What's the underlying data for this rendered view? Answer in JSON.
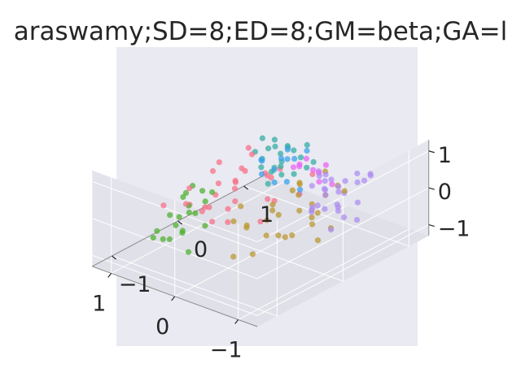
{
  "chart_data": {
    "type": "scatter",
    "projection": "3d",
    "title": "araswamy;SD=8;ED=8;GM=beta;GA=l",
    "xlabel": "",
    "ylabel": "",
    "zlabel": "",
    "xlim": [
      -1.3,
      1.3
    ],
    "ylim": [
      -1.3,
      1.3
    ],
    "zlim": [
      -1.3,
      1.3
    ],
    "x_ticks": [
      "−1",
      "0",
      "1"
    ],
    "y_ticks": [
      "−1",
      "0",
      "1"
    ],
    "z_ticks": [
      "−1",
      "0",
      "1"
    ],
    "grid": true,
    "legend": "none",
    "style": {
      "axes_bg": "#eaeaf2",
      "pane_color": "#e3e3eb",
      "grid_color": "#ffffff",
      "text_color": "#262626",
      "marker_alpha": 0.75
    },
    "series": [
      {
        "color": "#f77189",
        "x": [
          -0.1,
          0.35,
          0.4,
          -0.3,
          0.55,
          0.6,
          0.1,
          0.45,
          0.6,
          0.2,
          0.7,
          0.4,
          0.5,
          0.25,
          0.8,
          0.5,
          0.35,
          0.55,
          0.65,
          0.0,
          0.1,
          0.3,
          0.45,
          0.6,
          0.4,
          0.2,
          0.75,
          0.3,
          0.5,
          0.55
        ],
        "y": [
          0.2,
          -0.3,
          -0.5,
          0.5,
          -0.6,
          -0.2,
          0.2,
          0.2,
          -0.5,
          -0.3,
          -0.4,
          0.0,
          0.1,
          -0.6,
          -0.7,
          0.3,
          0.5,
          0.6,
          0.0,
          0.0,
          -0.4,
          -0.1,
          -0.3,
          0.2,
          0.1,
          0.3,
          0.0,
          0.5,
          -0.2,
          0.4
        ],
        "z": [
          0.8,
          0.6,
          0.0,
          0.5,
          0.2,
          -0.3,
          0.5,
          0.4,
          0.5,
          0.0,
          -0.1,
          -0.2,
          0.2,
          0.3,
          0.1,
          0.9,
          0.0,
          -0.1,
          0.7,
          -0.5,
          -0.2,
          0.3,
          -0.5,
          0.0,
          0.6,
          -0.3,
          0.4,
          -0.6,
          0.1,
          0.6
        ]
      },
      {
        "color": "#bb9832",
        "x": [
          -0.9,
          -0.7,
          -0.8,
          -0.6,
          -0.5,
          -0.4,
          -0.3,
          -0.7,
          -0.6,
          -0.2,
          -0.5,
          -0.4,
          -0.8,
          -0.3,
          -0.1,
          -0.6,
          -0.5,
          -0.2,
          0.0,
          -0.7,
          -0.4,
          -0.3,
          -0.9,
          -0.1,
          -0.6,
          -0.8,
          -0.5,
          -0.2,
          -0.4,
          -0.3
        ],
        "y": [
          0.0,
          -0.3,
          0.4,
          0.2,
          -0.6,
          -0.2,
          0.3,
          0.6,
          -0.1,
          -0.4,
          0.5,
          0.1,
          -0.5,
          -0.7,
          0.0,
          0.2,
          0.3,
          0.4,
          -0.3,
          -0.4,
          0.6,
          -0.2,
          0.2,
          0.5,
          0.0,
          0.1,
          -0.3,
          -0.6,
          0.4,
          -0.5
        ],
        "z": [
          0.3,
          -0.2,
          0.6,
          0.0,
          -0.5,
          0.4,
          -0.3,
          0.2,
          -0.4,
          -0.1,
          0.7,
          0.5,
          0.1,
          -0.6,
          -0.4,
          -0.2,
          0.0,
          0.3,
          0.2,
          0.5,
          -0.1,
          -0.5,
          -0.3,
          0.1,
          0.6,
          -0.6,
          0.4,
          0.2,
          -0.7,
          0.0
        ]
      },
      {
        "color": "#50b131",
        "x": [
          0.2,
          0.3,
          0.4,
          0.5,
          0.6,
          0.7,
          0.35,
          0.45,
          0.55,
          0.65,
          0.25,
          0.5,
          0.6,
          0.4,
          0.3,
          0.7,
          0.5,
          0.8,
          0.45,
          0.55
        ],
        "y": [
          -0.9,
          -0.7,
          -0.8,
          -0.6,
          -0.9,
          -0.7,
          -0.5,
          -0.8,
          -0.6,
          -1.0,
          -0.6,
          -0.4,
          -0.8,
          -0.9,
          -0.8,
          -0.5,
          -0.7,
          -0.8,
          -0.3,
          -0.5
        ],
        "z": [
          -0.6,
          0.2,
          -0.3,
          0.0,
          -0.5,
          -0.1,
          0.3,
          0.1,
          0.5,
          -0.4,
          -0.2,
          0.4,
          -0.6,
          0.0,
          0.5,
          0.2,
          -0.4,
          -0.5,
          0.3,
          0.6
        ]
      },
      {
        "color": "#36ada4",
        "x": [
          0.1,
          0.3,
          0.4,
          0.2,
          0.5,
          0.3,
          0.6,
          0.1,
          0.4,
          0.2,
          0.7,
          0.5,
          0.0,
          0.3,
          0.6,
          0.4,
          0.2,
          0.5,
          0.1,
          0.3,
          0.8,
          0.45
        ],
        "y": [
          0.6,
          0.5,
          0.8,
          0.7,
          0.6,
          0.9,
          0.8,
          0.4,
          0.5,
          0.9,
          0.7,
          0.4,
          0.7,
          0.3,
          0.9,
          0.6,
          0.5,
          0.8,
          0.9,
          0.7,
          0.8,
          0.6
        ],
        "z": [
          0.8,
          0.3,
          0.5,
          0.0,
          0.6,
          0.2,
          0.4,
          0.9,
          -0.2,
          0.6,
          0.1,
          0.7,
          0.3,
          0.5,
          -0.1,
          0.9,
          0.4,
          -0.3,
          0.2,
          0.7,
          0.5,
          0.0
        ]
      },
      {
        "color": "#3ba3ec",
        "x": [
          0.0,
          0.2,
          0.3,
          0.4,
          0.1,
          0.5,
          0.2,
          0.3,
          0.6,
          0.0,
          0.4,
          0.3
        ],
        "y": [
          0.4,
          0.6,
          0.5,
          0.7,
          0.8,
          0.5,
          0.4,
          0.3,
          0.6,
          0.6,
          0.9,
          0.7
        ],
        "z": [
          0.2,
          0.5,
          -0.1,
          0.3,
          0.6,
          0.0,
          0.4,
          0.7,
          0.2,
          -0.2,
          0.1,
          0.6
        ]
      },
      {
        "color": "#ae8ff2",
        "x": [
          -1.0,
          -0.9,
          -0.8,
          -0.7,
          -0.6,
          -0.5,
          -0.9,
          -0.8,
          -0.7,
          -0.6,
          -0.5,
          -0.4,
          -1.0,
          -0.8,
          -0.9,
          -0.7,
          -0.6,
          -0.5,
          -0.4,
          -0.3,
          -0.8,
          -0.9,
          -0.7,
          -0.6,
          -0.5,
          -0.4,
          -0.3,
          -0.2,
          -0.8,
          -0.7
        ],
        "y": [
          0.2,
          0.4,
          0.5,
          0.3,
          0.6,
          0.7,
          0.0,
          0.2,
          0.8,
          0.4,
          0.5,
          0.6,
          0.5,
          0.7,
          0.6,
          0.9,
          0.2,
          0.3,
          0.8,
          0.7,
          0.3,
          0.8,
          0.1,
          0.6,
          0.4,
          0.9,
          0.5,
          0.7,
          0.9,
          0.4
        ],
        "z": [
          0.4,
          -0.2,
          0.3,
          0.0,
          -0.4,
          0.1,
          0.5,
          0.7,
          -0.3,
          0.6,
          0.2,
          -0.1,
          -0.3,
          0.4,
          0.8,
          0.2,
          0.0,
          0.5,
          -0.2,
          0.3,
          -0.5,
          0.6,
          0.1,
          -0.3,
          0.8,
          0.0,
          -0.4,
          0.2,
          0.4,
          0.7
        ]
      },
      {
        "color": "#e866f4",
        "x": [
          -0.4,
          -0.3,
          -0.2,
          -0.1,
          0.0,
          -0.3,
          -0.2,
          -0.4,
          -0.1,
          -0.2
        ],
        "y": [
          0.5,
          0.6,
          0.4,
          0.7,
          0.5,
          0.3,
          0.8,
          0.7,
          0.6,
          0.4
        ],
        "z": [
          0.6,
          0.2,
          0.8,
          0.3,
          0.5,
          0.9,
          0.4,
          0.1,
          0.7,
          0.0
        ]
      }
    ]
  }
}
